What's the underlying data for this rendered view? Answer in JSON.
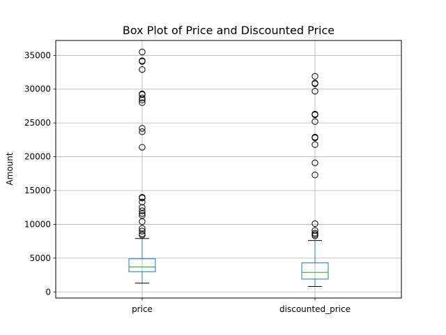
{
  "chart_data": {
    "type": "box",
    "title": "Box Plot of Price and Discounted Price",
    "xlabel": "",
    "ylabel": "Amount",
    "ylim": [
      -900,
      37200
    ],
    "yticks": [
      0,
      5000,
      10000,
      15000,
      20000,
      25000,
      30000,
      35000
    ],
    "ytick_labels": [
      "0",
      "5000",
      "10000",
      "15000",
      "20000",
      "25000",
      "30000",
      "35000"
    ],
    "grid": true,
    "colors": {
      "box": "#1f77b4",
      "median": "#2ca02c",
      "whisker": "#1f77b4",
      "cap": "#000000",
      "flier": "#000000",
      "grid": "#b0b0b0"
    },
    "categories": [
      "price",
      "discounted_price"
    ],
    "series": [
      {
        "whisker_low": 1300,
        "q1": 3000,
        "median": 3700,
        "q3": 4900,
        "whisker_high": 7900,
        "outliers": [
          8400,
          8600,
          9000,
          9400,
          10400,
          11300,
          11600,
          12000,
          12500,
          13300,
          13900,
          14000,
          21400,
          23700,
          24200,
          28000,
          28400,
          28700,
          29200,
          29300,
          32900,
          34100,
          34200,
          35500
        ]
      },
      {
        "whisker_low": 800,
        "q1": 1900,
        "median": 2900,
        "q3": 4300,
        "whisker_high": 7600,
        "outliers": [
          8300,
          8500,
          8700,
          9100,
          10100,
          17300,
          19100,
          21800,
          22800,
          22900,
          25200,
          26200,
          26300,
          29700,
          30800,
          30900,
          31900
        ]
      }
    ]
  }
}
